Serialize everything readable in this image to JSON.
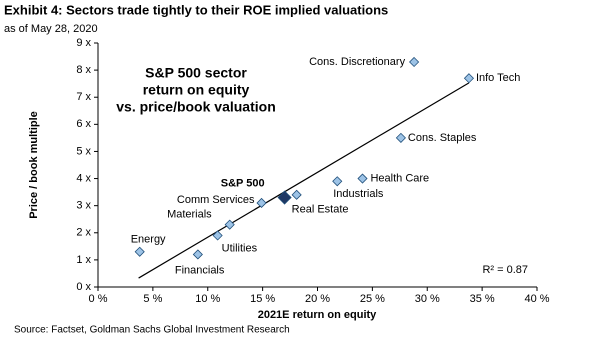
{
  "chart_data": {
    "type": "scatter",
    "title": "Exhibit 4: Sectors trade tightly to their ROE implied valuations",
    "subtitle": "as of May 28, 2020",
    "inset_title": [
      "S&P 500 sector",
      "return on equity",
      "vs. price/book valuation"
    ],
    "x_label": "2021E return on equity",
    "y_label": "Price / book multiple",
    "annotation": "R² = 0.87",
    "source": "Source:  Factset, Goldman Sachs Global Investment Research",
    "categories": [
      "Cons. Discretionary",
      "Info Tech",
      "Cons. Staples",
      "Health Care",
      "Industrials",
      "Real Estate",
      "S&P 500",
      "Comm Services",
      "Materials",
      "Utilities",
      "Financials",
      "Energy"
    ],
    "x": [
      28.8,
      33.8,
      27.6,
      24.1,
      21.8,
      18.1,
      17.0,
      14.9,
      12.0,
      10.9,
      9.1,
      3.8
    ],
    "values": [
      8.3,
      7.7,
      5.5,
      4.0,
      3.9,
      3.4,
      3.3,
      3.1,
      2.3,
      1.9,
      1.2,
      1.3
    ],
    "color": "#9dc3e6",
    "highlight_color": "#1f3864",
    "trendline": {
      "x": [
        3.7,
        33.8
      ],
      "y": [
        0.33,
        7.53
      ],
      "color": "#000000"
    },
    "xlim": [
      0,
      40
    ],
    "ylim": [
      0,
      9
    ],
    "xticks": [
      {
        "value": 0,
        "label": "0 %"
      },
      {
        "value": 5,
        "label": "5 %"
      },
      {
        "value": 10,
        "label": "10 %"
      },
      {
        "value": 15,
        "label": "15 %"
      },
      {
        "value": 20,
        "label": "20 %"
      },
      {
        "value": 25,
        "label": "25 %"
      },
      {
        "value": 30,
        "label": "30 %"
      },
      {
        "value": 35,
        "label": "35 %"
      },
      {
        "value": 40,
        "label": "40 %"
      }
    ],
    "yticks": [
      {
        "value": 0,
        "label": "0 x"
      },
      {
        "value": 1,
        "label": "1 x"
      },
      {
        "value": 2,
        "label": "2 x"
      },
      {
        "value": 3,
        "label": "3 x"
      },
      {
        "value": 4,
        "label": "4 x"
      },
      {
        "value": 5,
        "label": "5 x"
      },
      {
        "value": 6,
        "label": "6 x"
      },
      {
        "value": 7,
        "label": "7 x"
      },
      {
        "value": 8,
        "label": "8 x"
      },
      {
        "value": 9,
        "label": "9 x"
      }
    ],
    "grid": false
  }
}
